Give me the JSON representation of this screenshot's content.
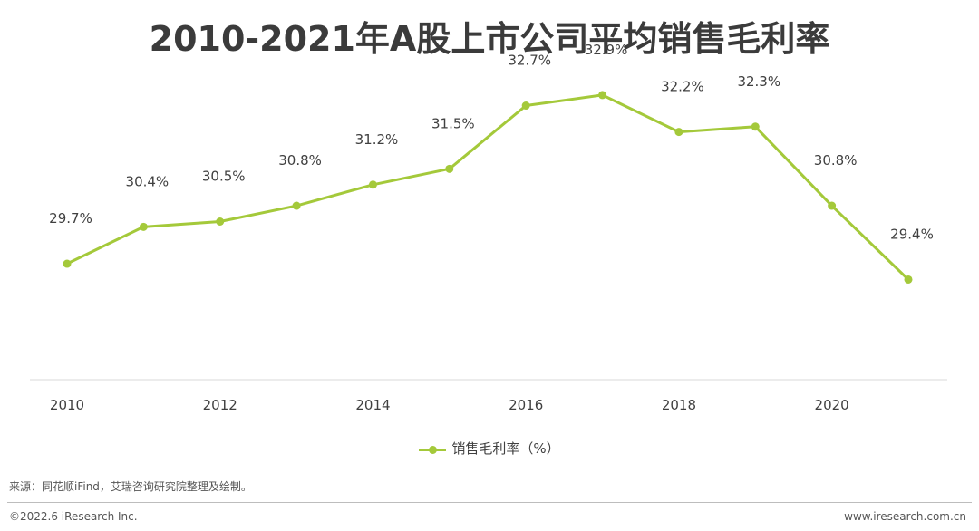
{
  "title": "2010-2021年A股上市公司平均销售毛利率",
  "legend_label": "销售毛利率（%）",
  "source_note": "来源：同花顺iFind，艾瑞咨询研究院整理及绘制。",
  "footer_left": "©2022.6 iResearch Inc.",
  "footer_right": "www.iresearch.com.cn",
  "colors": {
    "series": "#a4c93a",
    "axis": "#d9d9d9",
    "label": "#404040",
    "title": "#3b3b3b"
  },
  "chart_data": {
    "type": "line",
    "x": [
      2010,
      2011,
      2012,
      2013,
      2014,
      2015,
      2016,
      2017,
      2018,
      2019,
      2020,
      2021
    ],
    "x_tick_labels": [
      "2010",
      "2012",
      "2014",
      "2016",
      "2018",
      "2020"
    ],
    "series": [
      {
        "name": "销售毛利率（%）",
        "values": [
          29.7,
          30.4,
          30.5,
          30.8,
          31.2,
          31.5,
          32.7,
          32.9,
          32.2,
          32.3,
          30.8,
          29.4
        ],
        "data_labels": [
          "29.7%",
          "30.4%",
          "30.5%",
          "30.8%",
          "31.2%",
          "31.5%",
          "32.7%",
          "32.9%",
          "32.2%",
          "32.3%",
          "30.8%",
          "29.4%"
        ]
      }
    ],
    "ylim": [
      27.5,
      33.5
    ],
    "grid": false,
    "legend_position": "bottom"
  }
}
